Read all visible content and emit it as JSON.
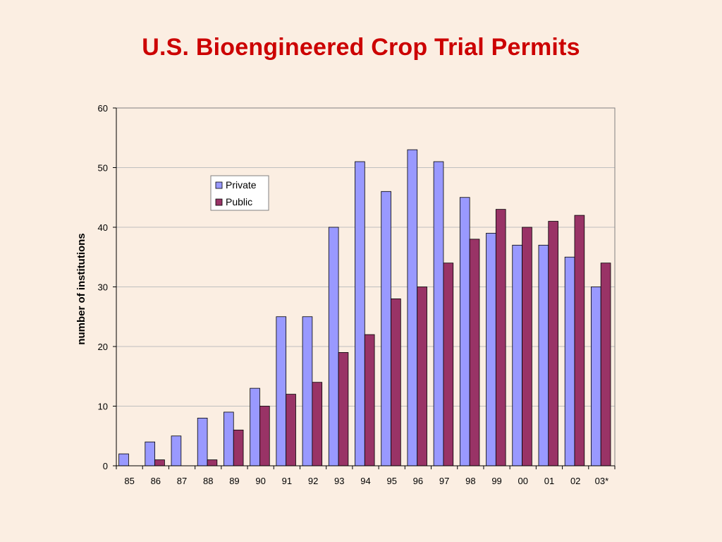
{
  "colors": {
    "background": "#fbeee2",
    "title": "#cc0000",
    "private": "#9999ff",
    "public": "#993366",
    "plot_bg": "#fbeee2",
    "grid": "#bfbfbf"
  },
  "chart_data": {
    "type": "bar",
    "title": "U.S. Bioengineered Crop Trial Permits",
    "xlabel": "",
    "ylabel": "number of institutions",
    "ylim": [
      0,
      60
    ],
    "yticks": [
      0,
      10,
      20,
      30,
      40,
      50,
      60
    ],
    "grid": true,
    "legend_position": "upper-left-inside",
    "categories": [
      "85",
      "86",
      "87",
      "88",
      "89",
      "90",
      "91",
      "92",
      "93",
      "94",
      "95",
      "96",
      "97",
      "98",
      "99",
      "00",
      "01",
      "02",
      "03*"
    ],
    "series": [
      {
        "name": "Private",
        "values": [
          2,
          4,
          5,
          8,
          9,
          13,
          25,
          25,
          40,
          51,
          46,
          53,
          51,
          45,
          39,
          37,
          37,
          35,
          30
        ]
      },
      {
        "name": "Public",
        "values": [
          0,
          1,
          0,
          1,
          6,
          10,
          12,
          14,
          19,
          22,
          28,
          30,
          34,
          38,
          43,
          40,
          41,
          42,
          34
        ]
      }
    ]
  }
}
